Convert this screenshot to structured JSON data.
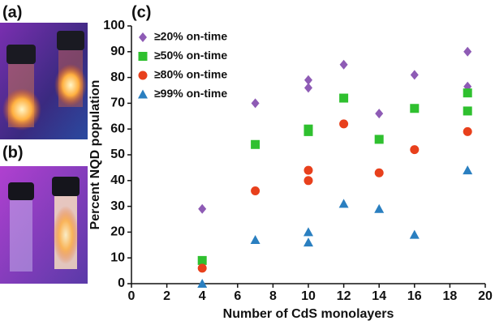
{
  "panels": {
    "a": "(a)",
    "b": "(b)"
  },
  "chart_data": {
    "type": "scatter",
    "panel_label": "(c)",
    "x_label": "Number of CdS monolayers",
    "y_label": "Percent NQD population",
    "xlim": [
      0,
      20
    ],
    "xticks": [
      0,
      2,
      4,
      6,
      8,
      10,
      12,
      14,
      16,
      18,
      20
    ],
    "ylim": [
      0,
      100
    ],
    "yticks": [
      0,
      10,
      20,
      30,
      40,
      50,
      60,
      70,
      80,
      90,
      100
    ],
    "grid": false,
    "legend": "upper left",
    "series": [
      {
        "name": "≥20% on-time",
        "color": "#8e5bb5",
        "marker": "diamond",
        "x": [
          4,
          7,
          10,
          10,
          12,
          14,
          16,
          19,
          19
        ],
        "values": [
          29,
          70,
          79,
          76,
          85,
          66,
          81,
          90,
          76.5
        ]
      },
      {
        "name": "≥50% on-time",
        "color": "#2fc02f",
        "marker": "square",
        "x": [
          4,
          7,
          10,
          10,
          12,
          14,
          16,
          19,
          19
        ],
        "values": [
          9,
          54,
          60,
          59,
          72,
          56,
          68,
          74,
          67
        ]
      },
      {
        "name": "≥80% on-time",
        "color": "#e8401c",
        "marker": "circle",
        "x": [
          4,
          7,
          10,
          10,
          12,
          14,
          16,
          19
        ],
        "values": [
          6,
          36,
          44,
          40,
          62,
          43,
          52,
          59
        ]
      },
      {
        "name": "≥99% on-time",
        "color": "#2a7fc0",
        "marker": "triangle",
        "x": [
          4,
          7,
          10,
          10,
          12,
          14,
          16,
          19
        ],
        "values": [
          0,
          17,
          20,
          16,
          31,
          29,
          19,
          44
        ]
      }
    ]
  }
}
